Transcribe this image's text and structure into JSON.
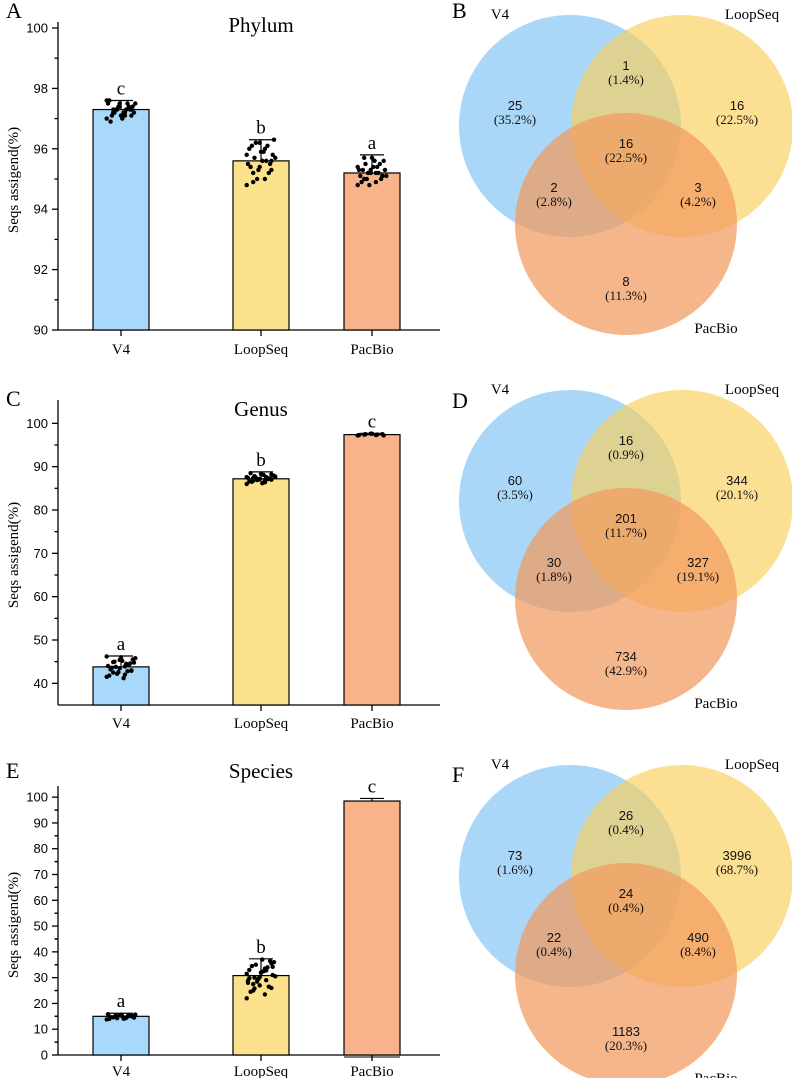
{
  "colors": {
    "V4": "#A8D8FA",
    "LoopSeq": "#FBE18C",
    "PacBio": "#F8B38A",
    "venn_V4": "#7DC1F4",
    "venn_LoopSeq": "#F9D05A",
    "venn_PacBio": "#F39A5E",
    "points": "#000000"
  },
  "chart_data": [
    {
      "panel": "A",
      "type": "bar",
      "title": "Phylum",
      "ylabel": "Seqs assigend(%)",
      "categories": [
        "V4",
        "LoopSeq",
        "PacBio"
      ],
      "values": [
        97.3,
        95.6,
        95.2
      ],
      "errors": [
        0.3,
        0.7,
        0.6
      ],
      "letters": [
        "c",
        "b",
        "a"
      ],
      "ylim": [
        90,
        100
      ],
      "yticks": [
        90,
        92,
        94,
        96,
        98,
        100
      ],
      "scatter": [
        [
          97.0,
          97.1,
          97.2,
          97.3,
          97.4,
          97.5,
          97.3,
          97.2,
          97.4,
          97.1,
          97.6,
          97.5,
          97.3,
          97.2,
          97.0,
          96.9,
          97.4,
          97.3,
          97.5,
          97.2,
          97.1,
          97.3,
          97.4,
          97.6,
          97.2,
          97.3,
          97.1,
          97.5
        ],
        [
          94.8,
          95.0,
          95.2,
          95.3,
          95.4,
          95.5,
          95.6,
          95.7,
          95.8,
          95.9,
          96.0,
          96.1,
          96.2,
          96.3,
          95.6,
          95.4,
          95.2,
          95.0,
          95.7,
          95.9,
          96.1,
          95.5,
          95.3,
          95.8,
          96.0,
          94.9,
          95.6,
          96.2
        ],
        [
          94.8,
          94.9,
          95.0,
          95.1,
          95.2,
          95.3,
          95.4,
          95.5,
          95.6,
          95.7,
          95.1,
          95.2,
          95.0,
          95.3,
          95.4,
          94.9,
          95.5,
          95.2,
          95.1,
          95.6,
          95.3,
          95.0,
          94.8,
          95.4,
          95.2,
          95.7,
          95.1,
          95.3
        ]
      ]
    },
    {
      "panel": "C",
      "type": "bar",
      "title": "Genus",
      "ylabel": "Seqs assigend(%)",
      "categories": [
        "V4",
        "LoopSeq",
        "PacBio"
      ],
      "values": [
        43.8,
        87.2,
        97.4
      ],
      "errors": [
        2.5,
        1.6,
        0.3
      ],
      "letters": [
        "a",
        "b",
        "c"
      ],
      "ylim": [
        35,
        104
      ],
      "yticks": [
        40,
        50,
        60,
        70,
        80,
        90,
        100
      ],
      "scatter": [
        [
          41.5,
          42.0,
          42.5,
          43.0,
          43.5,
          44.0,
          44.5,
          45.0,
          45.5,
          46.0,
          41.8,
          42.8,
          43.8,
          44.8,
          45.2,
          43.2,
          44.2,
          42.2,
          45.8,
          41.2,
          43.6,
          44.6,
          42.6,
          46.2,
          43.9,
          44.9,
          42.9,
          45.4
        ],
        [
          86.0,
          86.4,
          86.8,
          87.0,
          87.2,
          87.4,
          87.6,
          87.8,
          88.0,
          88.3,
          86.6,
          87.1,
          87.5,
          87.9,
          86.2,
          88.5,
          87.3,
          86.9,
          87.7,
          88.1,
          86.5,
          87.2,
          87.0,
          87.6,
          86.8,
          87.4,
          88.2,
          87.1
        ],
        [
          97.2,
          97.3,
          97.4,
          97.5,
          97.6,
          97.3,
          97.4,
          97.5,
          97.2,
          97.6
        ]
      ]
    },
    {
      "panel": "E",
      "type": "bar",
      "title": "Species",
      "ylabel": "Seqs assigend(%)",
      "categories": [
        "V4",
        "LoopSeq",
        "PacBio"
      ],
      "values": [
        15.0,
        30.8,
        98.5
      ],
      "errors": [
        1.2,
        6.5,
        1.0
      ],
      "letters": [
        "a",
        "b",
        "c"
      ],
      "ylim": [
        0,
        102
      ],
      "yticks": [
        0,
        10,
        20,
        30,
        40,
        50,
        60,
        70,
        80,
        90,
        100
      ],
      "ytick_labels": [
        "0",
        "10",
        "20",
        "30",
        "40",
        "50",
        "60",
        "70",
        "80",
        "90",
        "100"
      ],
      "tick_positions_px": null,
      "scatter": [
        [
          13.8,
          14.2,
          14.6,
          15.0,
          15.4,
          15.8,
          14.4,
          14.8,
          15.2,
          15.6,
          14.0,
          14.9,
          15.3,
          14.5,
          15.1,
          14.7,
          15.5,
          14.3,
          15.7,
          14.1
        ],
        [
          22.0,
          23.5,
          25.0,
          26.0,
          27.0,
          28.0,
          29.0,
          30.0,
          31.0,
          32.0,
          33.0,
          34.0,
          35.0,
          36.0,
          37.0,
          24.5,
          26.5,
          28.5,
          30.5,
          32.5,
          34.5,
          36.5,
          29.5,
          31.5,
          33.5,
          27.5,
          35.5,
          30.2,
          28.8,
          32.8,
          25.8,
          34.2,
          31.8,
          29.8
        ],
        []
      ]
    },
    {
      "panel": "B",
      "type": "venn",
      "sets": [
        "V4",
        "LoopSeq",
        "PacBio"
      ],
      "regions": {
        "V4_only": {
          "count": "25",
          "pct": "(35.2%)"
        },
        "LoopSeq_only": {
          "count": "16",
          "pct": "(22.5%)"
        },
        "PacBio_only": {
          "count": "8",
          "pct": "(11.3%)"
        },
        "V4_LoopSeq": {
          "count": "1",
          "pct": "(1.4%)"
        },
        "V4_PacBio": {
          "count": "2",
          "pct": "(2.8%)"
        },
        "LoopSeq_PacBio": {
          "count": "3",
          "pct": "(4.2%)"
        },
        "all": {
          "count": "16",
          "pct": "(22.5%)"
        }
      }
    },
    {
      "panel": "D",
      "type": "venn",
      "sets": [
        "V4",
        "LoopSeq",
        "PacBio"
      ],
      "regions": {
        "V4_only": {
          "count": "60",
          "pct": "(3.5%)"
        },
        "LoopSeq_only": {
          "count": "344",
          "pct": "(20.1%)"
        },
        "PacBio_only": {
          "count": "734",
          "pct": "(42.9%)"
        },
        "V4_LoopSeq": {
          "count": "16",
          "pct": "(0.9%)"
        },
        "V4_PacBio": {
          "count": "30",
          "pct": "(1.8%)"
        },
        "LoopSeq_PacBio": {
          "count": "327",
          "pct": "(19.1%)"
        },
        "all": {
          "count": "201",
          "pct": "(11.7%)"
        }
      }
    },
    {
      "panel": "F",
      "type": "venn",
      "sets": [
        "V4",
        "LoopSeq",
        "PacBio"
      ],
      "regions": {
        "V4_only": {
          "count": "73",
          "pct": "(1.6%)"
        },
        "LoopSeq_only": {
          "count": "3996",
          "pct": "(68.7%)"
        },
        "PacBio_only": {
          "count": "1183",
          "pct": "(20.3%)"
        },
        "V4_LoopSeq": {
          "count": "26",
          "pct": "(0.4%)"
        },
        "V4_PacBio": {
          "count": "22",
          "pct": "(0.4%)"
        },
        "LoopSeq_PacBio": {
          "count": "490",
          "pct": "(8.4%)"
        },
        "all": {
          "count": "24",
          "pct": "(0.4%)"
        }
      }
    }
  ]
}
